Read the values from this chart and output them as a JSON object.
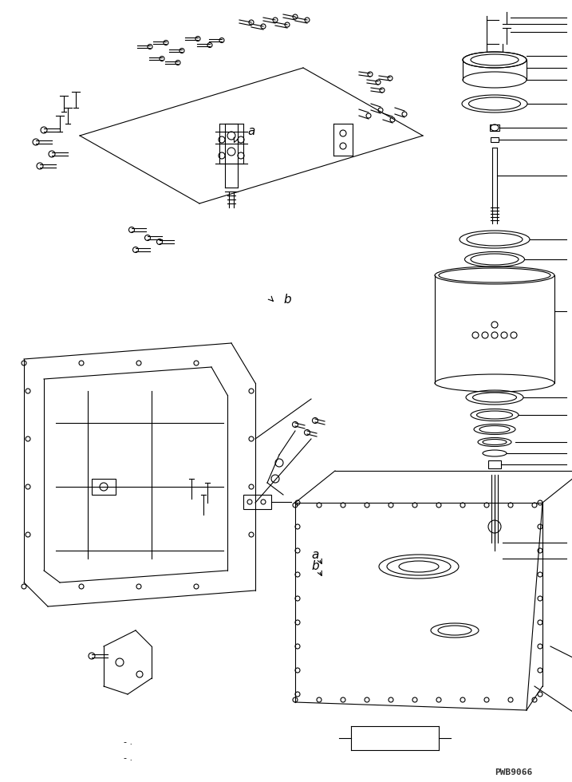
{
  "title": "",
  "background_color": "#ffffff",
  "line_color": "#000000",
  "fig_width": 7.17,
  "fig_height": 9.8,
  "watermark": "PWB9066",
  "label_a1": "a",
  "label_b1": "b",
  "label_a2": "a",
  "label_b2": "b"
}
